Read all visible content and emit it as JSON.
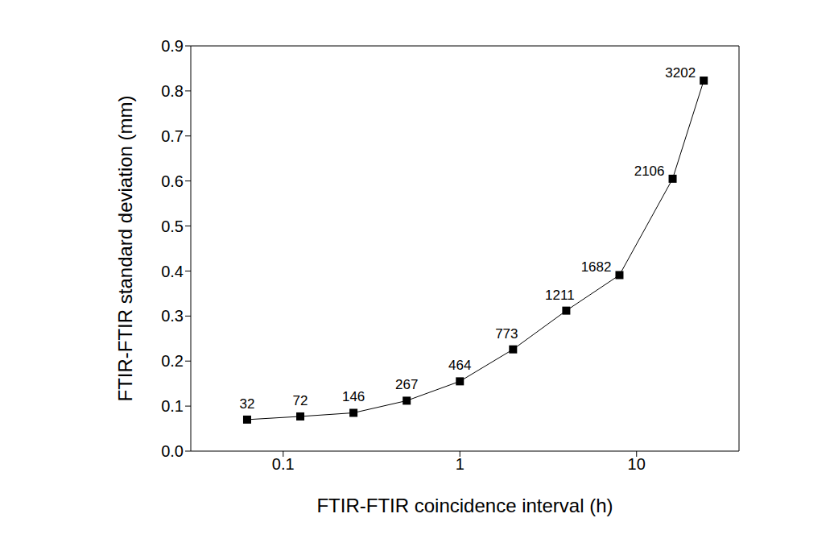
{
  "chart_data": {
    "type": "line",
    "x_label": "FTIR-FTIR coincidence interval (h)",
    "y_label": "FTIR-FTIR standard deviation (mm)",
    "x": [
      0.0625,
      0.125,
      0.25,
      0.5,
      1,
      2,
      4,
      8,
      16,
      24
    ],
    "values": [
      0.07,
      0.077,
      0.085,
      0.112,
      0.155,
      0.226,
      0.312,
      0.391,
      0.605,
      0.823
    ],
    "counts": [
      32,
      72,
      146,
      267,
      464,
      773,
      1211,
      1682,
      2106,
      3202
    ],
    "color": "#000000",
    "marker": "square",
    "line_style": "solid",
    "log": "x",
    "grid": false,
    "xlim": [
      0.03,
      38
    ],
    "xticks": [
      0.1,
      1,
      10
    ],
    "ylim": [
      0,
      0.9
    ],
    "yticks": [
      {
        "value": 0,
        "label": "0.0"
      },
      0.1,
      0.2,
      0.3,
      0.4,
      0.5,
      0.6,
      0.7,
      0.8,
      0.9
    ]
  }
}
